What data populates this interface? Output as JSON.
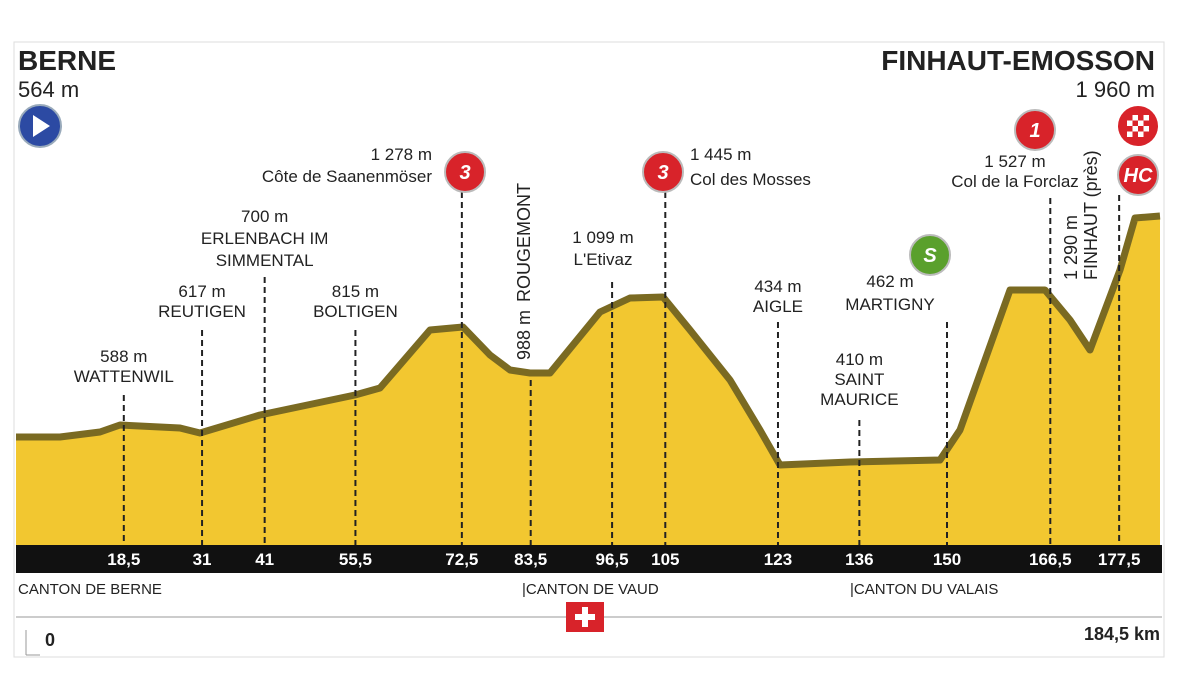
{
  "start": {
    "name": "BERNE",
    "elevation": "564 m"
  },
  "finish": {
    "name": "FINHAUT-EMOSSON",
    "elevation": "1 960 m"
  },
  "waypoints": [
    {
      "km": {
        "value": 18.5,
        "label": "18,5"
      },
      "elevation": "588 m",
      "name_lines": [
        "WATTENWIL"
      ]
    },
    {
      "km": 31,
      "elevation": "617 m",
      "name_lines": [
        "REUTIGEN"
      ]
    },
    {
      "km": 41,
      "elevation": "700 m",
      "name_lines": [
        "ERLENBACH IM",
        "SIMMENTAL"
      ]
    },
    {
      "km": {
        "value": 55.5,
        "label": "55,5"
      },
      "elevation": "815 m",
      "name_lines": [
        "BOLTIGEN"
      ]
    },
    {
      "km": {
        "value": 72.5,
        "label": "72,5"
      },
      "elevation": "1 278 m",
      "name_lines": [
        "Côte de Saanenmöser"
      ],
      "badge": "3"
    },
    {
      "km": {
        "value": 83.5,
        "label": "83,5"
      },
      "elevation": "988 m",
      "name_lines": [
        "ROUGEMONT"
      ]
    },
    {
      "km": {
        "value": 96.5,
        "label": "96,5"
      },
      "elevation": "1 099 m",
      "name_lines": [
        "L'Etivaz"
      ]
    },
    {
      "km": 105,
      "elevation": "1 445 m",
      "name_lines": [
        "Col des Mosses"
      ],
      "badge": "3"
    },
    {
      "km": 123,
      "elevation": "434 m",
      "name_lines": [
        "AIGLE"
      ]
    },
    {
      "km": 136,
      "elevation": "410 m",
      "name_lines": [
        "SAINT",
        "MAURICE"
      ]
    },
    {
      "km": 150,
      "elevation": "462 m",
      "name_lines": [
        "MARTIGNY"
      ],
      "badge": "S"
    },
    {
      "km": {
        "value": 166.5,
        "label": "166,5"
      },
      "elevation": "1 527 m",
      "name_lines": [
        "Col de la Forclaz"
      ],
      "badge": "1"
    },
    {
      "km": {
        "value": 177.5,
        "label": "177,5"
      },
      "elevation": "1 290 m",
      "name_lines": [
        "FINHAUT (près)"
      ],
      "badge": "HC"
    }
  ],
  "cantons": [
    "CANTON DE BERNE",
    "|CANTON DE VAUD",
    "|CANTON DU VALAIS"
  ],
  "distance_start": "0",
  "distance_total": "184,5 km"
}
